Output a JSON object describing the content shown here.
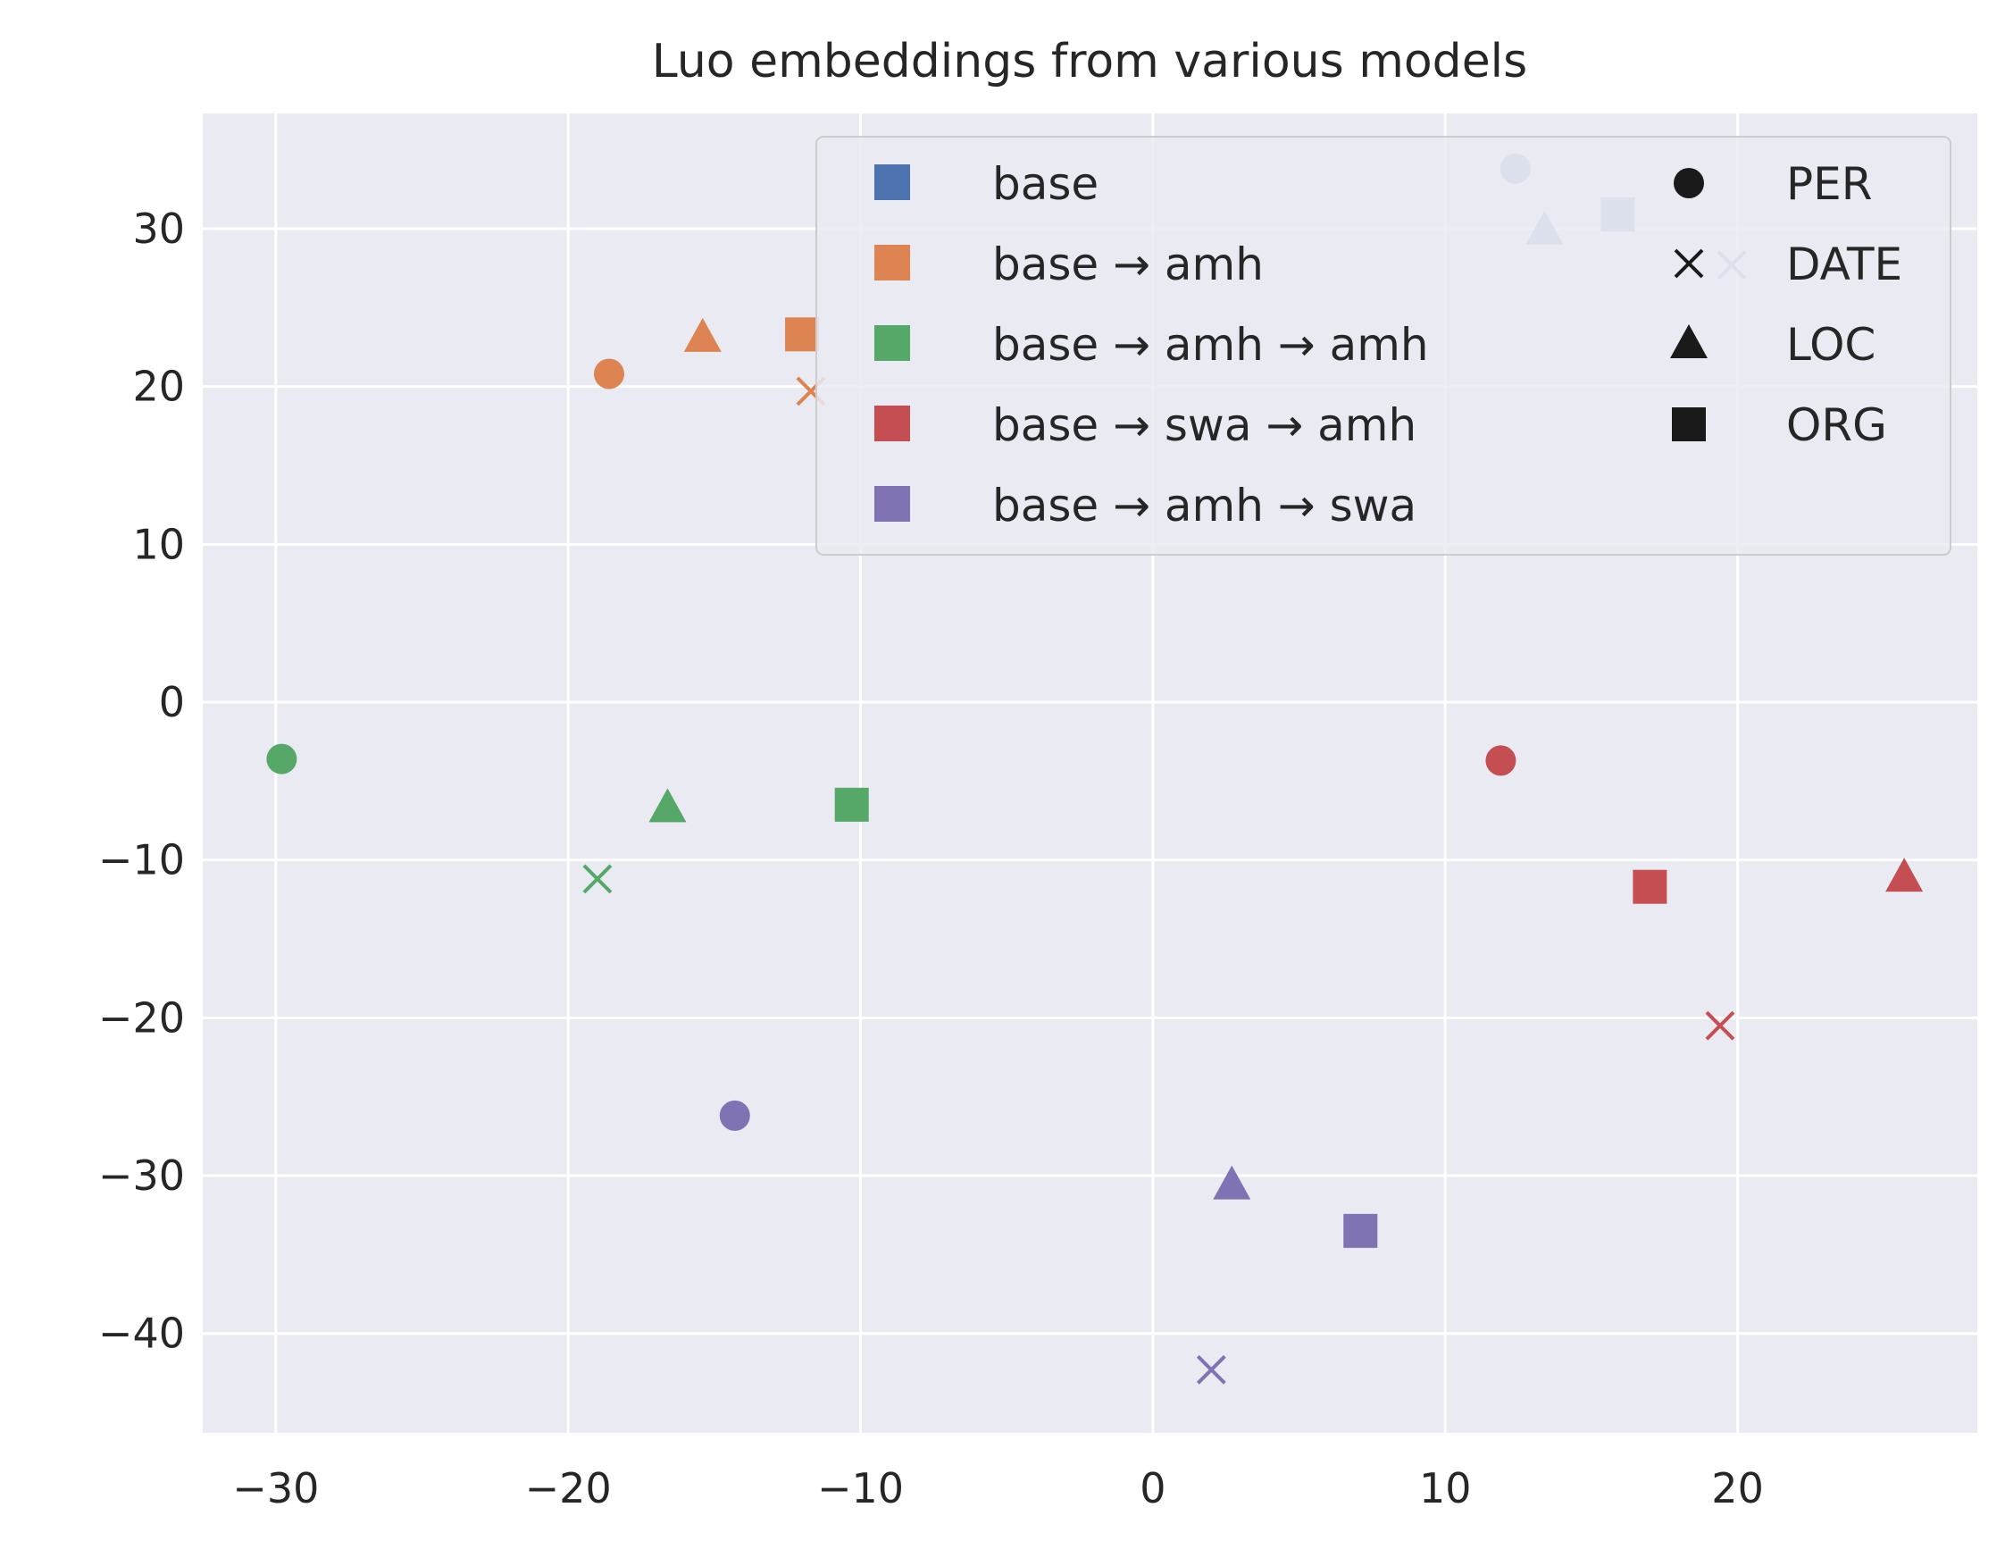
{
  "chart_data": {
    "type": "scatter",
    "title": "Luo embeddings from various models",
    "xlabel": "",
    "ylabel": "",
    "xlim": [
      -32.5,
      28.2
    ],
    "ylim": [
      -46.3,
      37.3
    ],
    "xticks": [
      -30,
      -20,
      -10,
      0,
      10,
      20
    ],
    "xtick_labels": [
      "−30",
      "−20",
      "−10",
      "0",
      "10",
      "20"
    ],
    "yticks": [
      -40,
      -30,
      -20,
      -10,
      0,
      10,
      20,
      30
    ],
    "ytick_labels": [
      "−40",
      "−30",
      "−20",
      "−10",
      "0",
      "10",
      "20",
      "30"
    ],
    "grid": true,
    "legend_position": "top-right",
    "series": [
      {
        "name": "base",
        "color": "#4c72b0",
        "points": [
          {
            "label": "PER",
            "x": 12.4,
            "y": 33.8
          },
          {
            "label": "DATE",
            "x": 19.8,
            "y": 27.7
          },
          {
            "label": "LOC",
            "x": 13.4,
            "y": 29.9
          },
          {
            "label": "ORG",
            "x": 15.9,
            "y": 30.9
          }
        ]
      },
      {
        "name": "base → amh",
        "color": "#dd8452",
        "points": [
          {
            "label": "PER",
            "x": -18.6,
            "y": 20.8
          },
          {
            "label": "DATE",
            "x": -11.7,
            "y": 19.7
          },
          {
            "label": "LOC",
            "x": -15.4,
            "y": 23.1
          },
          {
            "label": "ORG",
            "x": -12.0,
            "y": 23.3
          }
        ]
      },
      {
        "name": "base → amh → amh",
        "color": "#55a868",
        "points": [
          {
            "label": "PER",
            "x": -29.8,
            "y": -3.6
          },
          {
            "label": "DATE",
            "x": -19.0,
            "y": -11.2
          },
          {
            "label": "LOC",
            "x": -16.6,
            "y": -6.7
          },
          {
            "label": "ORG",
            "x": -10.3,
            "y": -6.5
          }
        ]
      },
      {
        "name": "base → swa → amh",
        "color": "#c44e52",
        "points": [
          {
            "label": "PER",
            "x": 11.9,
            "y": -3.7
          },
          {
            "label": "DATE",
            "x": 19.4,
            "y": -20.5
          },
          {
            "label": "LOC",
            "x": 25.7,
            "y": -11.1
          },
          {
            "label": "ORG",
            "x": 17.0,
            "y": -11.7
          }
        ]
      },
      {
        "name": "base → amh → swa",
        "color": "#8172b3",
        "points": [
          {
            "label": "PER",
            "x": -14.3,
            "y": -26.2
          },
          {
            "label": "DATE",
            "x": 2.0,
            "y": -42.3
          },
          {
            "label": "LOC",
            "x": 2.7,
            "y": -30.6
          },
          {
            "label": "ORG",
            "x": 7.1,
            "y": -33.5
          }
        ]
      }
    ],
    "marker_legend": [
      {
        "label": "PER",
        "marker": "circle"
      },
      {
        "label": "DATE",
        "marker": "x"
      },
      {
        "label": "LOC",
        "marker": "triangle"
      },
      {
        "label": "ORG",
        "marker": "square"
      }
    ],
    "colors": {
      "plot_background": "#eaeaf2",
      "grid": "#ffffff",
      "legend_marker_black": "#1a1a1a"
    }
  }
}
